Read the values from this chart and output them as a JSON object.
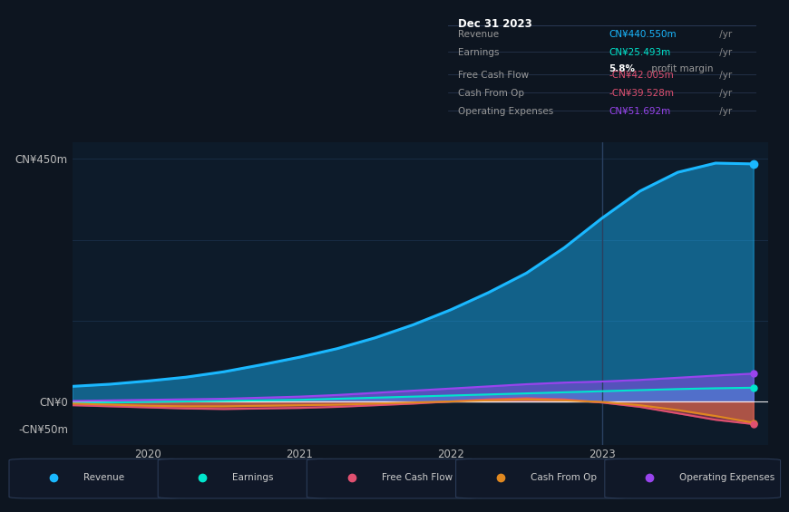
{
  "background_color": "#0d1520",
  "plot_bg_color": "#0d1b2a",
  "years": [
    2019.5,
    2019.75,
    2020.0,
    2020.25,
    2020.5,
    2020.75,
    2021.0,
    2021.25,
    2021.5,
    2021.75,
    2022.0,
    2022.25,
    2022.5,
    2022.75,
    2023.0,
    2023.25,
    2023.5,
    2023.75,
    2024.0
  ],
  "revenue": [
    28,
    32,
    38,
    45,
    55,
    68,
    82,
    98,
    118,
    142,
    170,
    202,
    238,
    285,
    340,
    390,
    425,
    442,
    440.55
  ],
  "earnings": [
    -3,
    -2,
    -1,
    0,
    1,
    2,
    3,
    5,
    7,
    9,
    11,
    13,
    15,
    17,
    19,
    21,
    23,
    24.5,
    25.493
  ],
  "free_cash_flow": [
    -7,
    -9,
    -11,
    -13,
    -14,
    -13,
    -12,
    -10,
    -7,
    -4,
    0,
    4,
    6,
    4,
    -2,
    -10,
    -22,
    -34,
    -42.005
  ],
  "cash_from_op": [
    -4,
    -6,
    -8,
    -9,
    -9,
    -8,
    -7,
    -6,
    -4,
    -2,
    0,
    2,
    4,
    2,
    -1,
    -7,
    -16,
    -27,
    -39.528
  ],
  "operating_expenses": [
    1,
    2,
    3,
    4,
    5,
    7,
    9,
    12,
    16,
    20,
    24,
    28,
    32,
    35,
    37,
    40,
    44,
    48,
    51.692
  ],
  "xlim": [
    2019.5,
    2024.1
  ],
  "ylim": [
    -80,
    480
  ],
  "ytick_positions": [
    -50,
    0,
    450
  ],
  "ytick_labels": [
    "-CN¥50m",
    "CN¥0",
    "CN¥450m"
  ],
  "xtick_positions": [
    2020,
    2021,
    2022,
    2023
  ],
  "xtick_labels": [
    "2020",
    "2021",
    "2022",
    "2023"
  ],
  "revenue_color": "#1ab8ff",
  "earnings_color": "#00e5cc",
  "fcf_color": "#e05070",
  "cashfromop_color": "#e08820",
  "opex_color": "#9944ee",
  "vertical_line_x": 2023.0,
  "grid_color": "#1a2f48",
  "info_box": {
    "title": "Dec 31 2023",
    "rows": [
      {
        "label": "Revenue",
        "value": "CN¥440.550m",
        "value_color": "#1ab8ff",
        "suffix": " /yr",
        "sub": null
      },
      {
        "label": "Earnings",
        "value": "CN¥25.493m",
        "value_color": "#00e5cc",
        "suffix": " /yr",
        "sub": "5.8% profit margin"
      },
      {
        "label": "Free Cash Flow",
        "value": "-CN¥42.005m",
        "value_color": "#e05070",
        "suffix": " /yr",
        "sub": null
      },
      {
        "label": "Cash From Op",
        "value": "-CN¥39.528m",
        "value_color": "#e05070",
        "suffix": " /yr",
        "sub": null
      },
      {
        "label": "Operating Expenses",
        "value": "CN¥51.692m",
        "value_color": "#9944ee",
        "suffix": " /yr",
        "sub": null
      }
    ]
  },
  "legend_items": [
    {
      "label": "Revenue",
      "color": "#1ab8ff"
    },
    {
      "label": "Earnings",
      "color": "#00e5cc"
    },
    {
      "label": "Free Cash Flow",
      "color": "#e05070"
    },
    {
      "label": "Cash From Op",
      "color": "#e08820"
    },
    {
      "label": "Operating Expenses",
      "color": "#9944ee"
    }
  ]
}
